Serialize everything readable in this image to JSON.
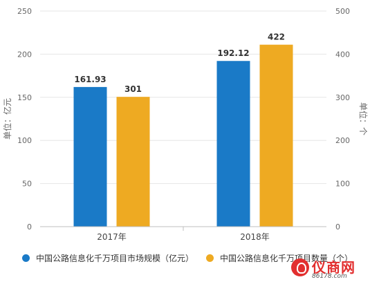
{
  "chart_data": {
    "type": "bar",
    "categories": [
      "2017年",
      "2018年"
    ],
    "series": [
      {
        "name": "中国公路信息化千万项目市场规模（亿元）",
        "axis": "left",
        "color": "#1a7ac7",
        "values": [
          161.93,
          192.12
        ],
        "labels": [
          "161.93",
          "192.12"
        ]
      },
      {
        "name": "中国公路信息化千万项目数量（个）",
        "axis": "right",
        "color": "#eeaa22",
        "values": [
          301,
          422
        ],
        "labels": [
          "301",
          "422"
        ]
      }
    ],
    "y_left": {
      "label": "单位：亿元",
      "ylim": [
        0,
        250
      ],
      "ticks": [
        "0",
        "50",
        "100",
        "150",
        "200",
        "250"
      ]
    },
    "y_right": {
      "label": "单位：个",
      "ylim": [
        0,
        500
      ],
      "ticks": [
        "0",
        "100",
        "200",
        "300",
        "400",
        "500"
      ]
    },
    "grid": true,
    "legend_position": "bottom"
  },
  "logo": {
    "text": "仪商网",
    "sub": "86178.com"
  }
}
